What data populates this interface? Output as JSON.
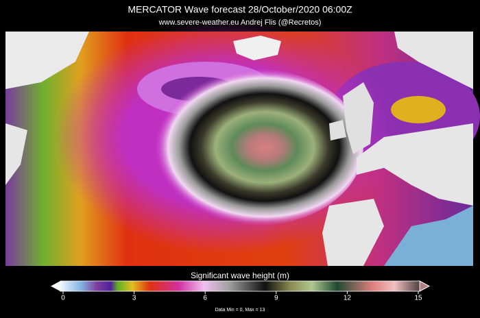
{
  "header": {
    "title": "MERCATOR Wave forecast   28/October/2020 06:00Z",
    "subtitle": "www.severe-weather.eu    Andrej Flis (@Recretos)"
  },
  "colorbar": {
    "label": "Significant wave height (m)",
    "range": [
      0,
      15
    ],
    "ticks": [
      0,
      3,
      6,
      9,
      12,
      15
    ],
    "note": "Data Min = 0, Max = 13"
  }
}
